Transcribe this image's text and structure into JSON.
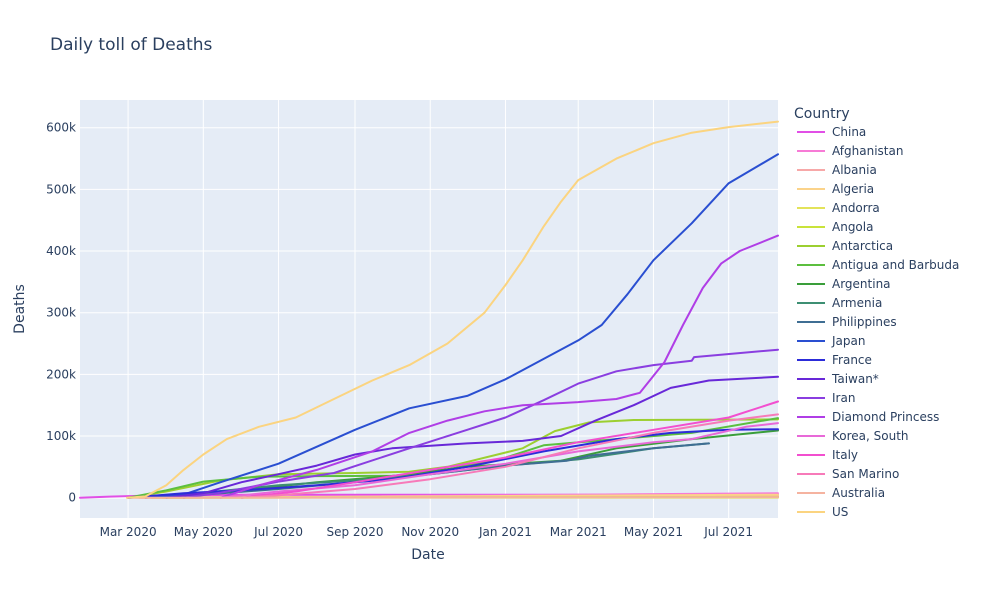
{
  "chart_data": {
    "type": "line",
    "title": "Daily toll of Deaths",
    "xlabel": "Date",
    "ylabel": "Deaths",
    "x_ticks": [
      "Mar 2020",
      "May 2020",
      "Jul 2020",
      "Sep 2020",
      "Nov 2020",
      "Jan 2021",
      "Mar 2021",
      "May 2021",
      "Jul 2021"
    ],
    "x_tick_dates": [
      "2020-03-01",
      "2020-05-01",
      "2020-07-01",
      "2020-09-01",
      "2020-11-01",
      "2021-01-01",
      "2021-03-01",
      "2021-05-01",
      "2021-07-01"
    ],
    "xlim": [
      "2020-01-22",
      "2021-08-10"
    ],
    "y_ticks": [
      0,
      100000,
      200000,
      300000,
      400000,
      500000,
      600000
    ],
    "y_tick_labels": [
      "0",
      "100k",
      "200k",
      "300k",
      "400k",
      "500k",
      "600k"
    ],
    "ylim": [
      -33000,
      645000
    ],
    "grid": true,
    "legend_title": "Country",
    "legend_position": "right",
    "series": [
      {
        "name": "China",
        "color": "#e14fe6",
        "points": [
          [
            "2020-01-22",
            0
          ],
          [
            "2020-02-15",
            1700
          ],
          [
            "2020-03-15",
            3200
          ],
          [
            "2020-06-01",
            4600
          ],
          [
            "2021-08-10",
            4800
          ]
        ]
      },
      {
        "name": "Afghanistan",
        "color": "#f77bd6",
        "points": [
          [
            "2020-03-20",
            0
          ],
          [
            "2021-08-10",
            7000
          ]
        ]
      },
      {
        "name": "Albania",
        "color": "#f7a8a8",
        "points": [
          [
            "2020-03-10",
            0
          ],
          [
            "2021-08-10",
            2500
          ]
        ]
      },
      {
        "name": "Algeria",
        "color": "#fbd38a",
        "points": [
          [
            "2020-03-12",
            0
          ],
          [
            "2021-08-10",
            4800
          ]
        ]
      },
      {
        "name": "Andorra",
        "color": "#e3e35a",
        "points": [
          [
            "2020-03-20",
            0
          ],
          [
            "2021-08-10",
            130
          ]
        ]
      },
      {
        "name": "Angola",
        "color": "#c9e33a",
        "points": [
          [
            "2020-03-29",
            0
          ],
          [
            "2021-08-10",
            1200
          ]
        ]
      },
      {
        "name": "Antarctica",
        "color": "#9ccf30",
        "points": [
          [
            "2020-03-01",
            0
          ],
          [
            "2020-04-01",
            10000
          ],
          [
            "2020-05-15",
            28000
          ],
          [
            "2020-07-01",
            38000
          ],
          [
            "2020-09-01",
            40000
          ],
          [
            "2020-10-15",
            42000
          ],
          [
            "2020-11-15",
            50000
          ],
          [
            "2021-01-15",
            80000
          ],
          [
            "2021-02-10",
            108000
          ],
          [
            "2021-03-10",
            122000
          ],
          [
            "2021-04-15",
            126000
          ],
          [
            "2021-08-10",
            127000
          ]
        ]
      },
      {
        "name": "Antigua and Barbuda",
        "color": "#5cbf3f",
        "points": [
          [
            "2020-03-01",
            0
          ],
          [
            "2020-04-01",
            12000
          ],
          [
            "2020-05-01",
            26000
          ],
          [
            "2020-06-15",
            34000
          ],
          [
            "2020-08-01",
            35000
          ],
          [
            "2020-10-01",
            35500
          ],
          [
            "2020-11-01",
            40000
          ],
          [
            "2021-01-01",
            65000
          ],
          [
            "2021-02-01",
            85000
          ],
          [
            "2021-04-01",
            95000
          ],
          [
            "2021-06-01",
            105000
          ],
          [
            "2021-08-10",
            129000
          ]
        ]
      },
      {
        "name": "Argentina",
        "color": "#3a9e3a",
        "points": [
          [
            "2020-03-01",
            0
          ],
          [
            "2020-04-01",
            3000
          ],
          [
            "2020-06-01",
            12000
          ],
          [
            "2020-08-01",
            25000
          ],
          [
            "2020-10-01",
            35000
          ],
          [
            "2020-12-01",
            50000
          ],
          [
            "2021-02-15",
            60000
          ],
          [
            "2021-04-01",
            80000
          ],
          [
            "2021-06-01",
            95000
          ],
          [
            "2021-08-10",
            109000
          ]
        ]
      },
      {
        "name": "Armenia",
        "color": "#3d8f73",
        "points": [
          [
            "2020-03-01",
            0
          ],
          [
            "2020-05-01",
            8000
          ],
          [
            "2020-07-01",
            20000
          ],
          [
            "2020-09-01",
            28000
          ],
          [
            "2020-11-01",
            38000
          ],
          [
            "2021-01-01",
            52000
          ],
          [
            "2021-03-01",
            62000
          ],
          [
            "2021-05-01",
            80000
          ],
          [
            "2021-06-15",
            88000
          ]
        ]
      },
      {
        "name": "Philippines",
        "color": "#3f6e93",
        "points": [
          [
            "2020-03-01",
            0
          ],
          [
            "2020-05-01",
            5000
          ],
          [
            "2020-07-01",
            14000
          ],
          [
            "2020-09-01",
            25000
          ],
          [
            "2020-11-01",
            38000
          ],
          [
            "2021-01-01",
            52000
          ],
          [
            "2021-02-20",
            60000
          ],
          [
            "2021-03-10",
            68000
          ],
          [
            "2021-05-01",
            80000
          ],
          [
            "2021-06-15",
            88000
          ]
        ]
      },
      {
        "name": "Japan",
        "color": "#2a4fd1",
        "points": [
          [
            "2020-03-15",
            0
          ],
          [
            "2020-04-15",
            5000
          ],
          [
            "2020-05-15",
            25000
          ],
          [
            "2020-07-01",
            55000
          ],
          [
            "2020-09-01",
            110000
          ],
          [
            "2020-10-15",
            145000
          ],
          [
            "2020-12-01",
            165000
          ],
          [
            "2021-01-01",
            192000
          ],
          [
            "2021-02-01",
            225000
          ],
          [
            "2021-03-01",
            255000
          ],
          [
            "2021-03-20",
            280000
          ],
          [
            "2021-04-10",
            330000
          ],
          [
            "2021-05-01",
            385000
          ],
          [
            "2021-06-01",
            445000
          ],
          [
            "2021-07-01",
            510000
          ],
          [
            "2021-08-10",
            557000
          ]
        ]
      },
      {
        "name": "France",
        "color": "#2c2cd9",
        "points": [
          [
            "2020-03-01",
            0
          ],
          [
            "2020-04-15",
            7000
          ],
          [
            "2020-06-01",
            12000
          ],
          [
            "2020-08-01",
            20000
          ],
          [
            "2020-10-01",
            30000
          ],
          [
            "2020-12-01",
            50000
          ],
          [
            "2021-02-01",
            75000
          ],
          [
            "2021-04-01",
            95000
          ],
          [
            "2021-05-15",
            105000
          ],
          [
            "2021-07-01",
            110000
          ],
          [
            "2021-08-10",
            111000
          ]
        ]
      },
      {
        "name": "Taiwan*",
        "color": "#6828d8",
        "points": [
          [
            "2020-04-01",
            0
          ],
          [
            "2020-05-01",
            7000
          ],
          [
            "2020-06-01",
            25000
          ],
          [
            "2020-07-01",
            38000
          ],
          [
            "2020-08-01",
            52000
          ],
          [
            "2020-09-01",
            70000
          ],
          [
            "2020-10-01",
            80000
          ],
          [
            "2020-12-01",
            88000
          ],
          [
            "2021-01-15",
            92000
          ],
          [
            "2021-02-15",
            100000
          ],
          [
            "2021-03-15",
            125000
          ],
          [
            "2021-04-15",
            150000
          ],
          [
            "2021-05-15",
            178000
          ],
          [
            "2021-06-15",
            190000
          ],
          [
            "2021-08-10",
            196000
          ]
        ]
      },
      {
        "name": "Iran",
        "color": "#8a3ee0",
        "points": [
          [
            "2020-04-15",
            0
          ],
          [
            "2020-05-15",
            8000
          ],
          [
            "2020-07-01",
            26000
          ],
          [
            "2020-08-15",
            40000
          ],
          [
            "2020-10-15",
            80000
          ],
          [
            "2020-12-01",
            110000
          ],
          [
            "2021-01-01",
            130000
          ],
          [
            "2021-02-01",
            158000
          ],
          [
            "2021-03-01",
            185000
          ],
          [
            "2021-04-01",
            205000
          ],
          [
            "2021-05-01",
            215000
          ],
          [
            "2021-06-01",
            222000
          ],
          [
            "2021-06-03",
            228000
          ],
          [
            "2021-08-10",
            240000
          ]
        ]
      },
      {
        "name": "Diamond Princess",
        "color": "#b03ee6",
        "points": [
          [
            "2020-05-15",
            0
          ],
          [
            "2020-06-15",
            20000
          ],
          [
            "2020-08-01",
            45000
          ],
          [
            "2020-09-15",
            75000
          ],
          [
            "2020-10-15",
            105000
          ],
          [
            "2020-11-15",
            125000
          ],
          [
            "2020-12-15",
            140000
          ],
          [
            "2021-01-15",
            150000
          ],
          [
            "2021-03-01",
            155000
          ],
          [
            "2021-04-01",
            160000
          ],
          [
            "2021-04-20",
            170000
          ],
          [
            "2021-05-10",
            220000
          ],
          [
            "2021-05-25",
            280000
          ],
          [
            "2021-06-10",
            340000
          ],
          [
            "2021-06-25",
            380000
          ],
          [
            "2021-07-10",
            400000
          ],
          [
            "2021-08-10",
            425000
          ]
        ]
      },
      {
        "name": "Korea, South",
        "color": "#e869d8",
        "points": [
          [
            "2020-05-15",
            0
          ],
          [
            "2020-07-01",
            10000
          ],
          [
            "2020-09-01",
            20000
          ],
          [
            "2020-11-01",
            38000
          ],
          [
            "2021-01-01",
            55000
          ],
          [
            "2021-03-01",
            75000
          ],
          [
            "2021-05-01",
            90000
          ],
          [
            "2021-06-01",
            95000
          ],
          [
            "2021-07-15",
            115000
          ],
          [
            "2021-08-10",
            121000
          ]
        ]
      },
      {
        "name": "Italy",
        "color": "#f24fcf",
        "points": [
          [
            "2020-06-01",
            0
          ],
          [
            "2020-07-15",
            10000
          ],
          [
            "2020-09-01",
            25000
          ],
          [
            "2020-11-01",
            45000
          ],
          [
            "2021-01-01",
            65000
          ],
          [
            "2021-03-01",
            90000
          ],
          [
            "2021-05-01",
            110000
          ],
          [
            "2021-07-01",
            130000
          ],
          [
            "2021-08-10",
            156000
          ]
        ]
      },
      {
        "name": "San Marino",
        "color": "#f77ab9",
        "points": [
          [
            "2020-06-01",
            0
          ],
          [
            "2020-07-01",
            4000
          ],
          [
            "2020-09-01",
            14000
          ],
          [
            "2020-11-01",
            30000
          ],
          [
            "2021-01-01",
            50000
          ],
          [
            "2021-03-01",
            80000
          ],
          [
            "2021-05-01",
            105000
          ],
          [
            "2021-07-01",
            125000
          ],
          [
            "2021-08-10",
            135000
          ]
        ]
      },
      {
        "name": "Australia",
        "color": "#f5b3a0",
        "points": [
          [
            "2020-03-01",
            0
          ],
          [
            "2021-08-10",
            900
          ]
        ]
      },
      {
        "name": "US",
        "color": "#fbd480",
        "points": [
          [
            "2020-02-29",
            0
          ],
          [
            "2020-03-15",
            2000
          ],
          [
            "2020-04-01",
            20000
          ],
          [
            "2020-04-15",
            45000
          ],
          [
            "2020-05-01",
            70000
          ],
          [
            "2020-05-20",
            95000
          ],
          [
            "2020-06-15",
            115000
          ],
          [
            "2020-07-15",
            130000
          ],
          [
            "2020-08-15",
            160000
          ],
          [
            "2020-09-15",
            190000
          ],
          [
            "2020-10-15",
            215000
          ],
          [
            "2020-11-15",
            250000
          ],
          [
            "2020-12-15",
            300000
          ],
          [
            "2021-01-01",
            345000
          ],
          [
            "2021-01-15",
            385000
          ],
          [
            "2021-02-01",
            440000
          ],
          [
            "2021-02-15",
            480000
          ],
          [
            "2021-03-01",
            515000
          ],
          [
            "2021-04-01",
            550000
          ],
          [
            "2021-05-01",
            575000
          ],
          [
            "2021-06-01",
            592000
          ],
          [
            "2021-07-01",
            601000
          ],
          [
            "2021-08-10",
            610000
          ]
        ]
      }
    ]
  }
}
